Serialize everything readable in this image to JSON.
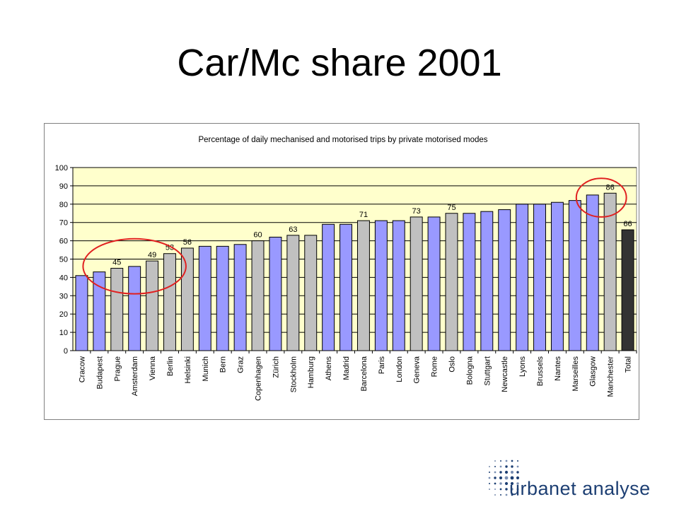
{
  "slide": {
    "title": "Car/Mc share 2001"
  },
  "logo": {
    "name": "urbanet analyse"
  },
  "colors": {
    "blue": "#9999FF",
    "grey": "#C0C0C0",
    "total": "#333333",
    "plot_area": "#FFFFCC",
    "circle": "#E02020"
  },
  "chart_data": {
    "type": "bar",
    "title": "Percentage of daily mechanised and motorised trips by private motorised modes",
    "xlabel": "",
    "ylabel": "",
    "ylim": [
      0,
      100
    ],
    "yticks": [
      0,
      10,
      20,
      30,
      40,
      50,
      60,
      70,
      80,
      90,
      100
    ],
    "grid": true,
    "legend": "none",
    "categories": [
      "Cracow",
      "Budapest",
      "Prague",
      "Amsterdam",
      "Vienna",
      "Berlin",
      "Helsinki",
      "Munich",
      "Bern",
      "Graz",
      "Copenhagen",
      "Zürich",
      "Stockholm",
      "Hamburg",
      "Athens",
      "Madrid",
      "Barcelona",
      "Paris",
      "London",
      "Geneva",
      "Rome",
      "Oslo",
      "Bologna",
      "Stuttgart",
      "Newcastle",
      "Lyons",
      "Brussels",
      "Nantes",
      "Marseilles",
      "Glasgow",
      "Manchester",
      "Total"
    ],
    "values": [
      41,
      43,
      45,
      46,
      49,
      53,
      56,
      57,
      57,
      58,
      60,
      62,
      63,
      63,
      69,
      69,
      71,
      71,
      71,
      73,
      73,
      75,
      75,
      76,
      77,
      80,
      80,
      81,
      82,
      85,
      86,
      66
    ],
    "bar_colors": [
      "blue",
      "blue",
      "grey",
      "blue",
      "grey",
      "grey",
      "grey",
      "blue",
      "blue",
      "blue",
      "grey",
      "blue",
      "grey",
      "grey",
      "blue",
      "blue",
      "grey",
      "blue",
      "blue",
      "grey",
      "blue",
      "grey",
      "blue",
      "blue",
      "blue",
      "blue",
      "blue",
      "blue",
      "blue",
      "blue",
      "grey",
      "total"
    ],
    "data_labels": {
      "Prague": "45",
      "Vienna": "49",
      "Berlin": "53",
      "Helsinki": "56",
      "Copenhagen": "60",
      "Stockholm": "63",
      "Barcelona": "71",
      "Geneva": "73",
      "Oslo": "75",
      "Manchester": "86",
      "Total": "66"
    },
    "annotations": [
      {
        "type": "circle",
        "around": [
          "Budapest",
          "Berlin"
        ]
      },
      {
        "type": "circle",
        "around": [
          "Glasgow",
          "Manchester"
        ]
      }
    ]
  }
}
